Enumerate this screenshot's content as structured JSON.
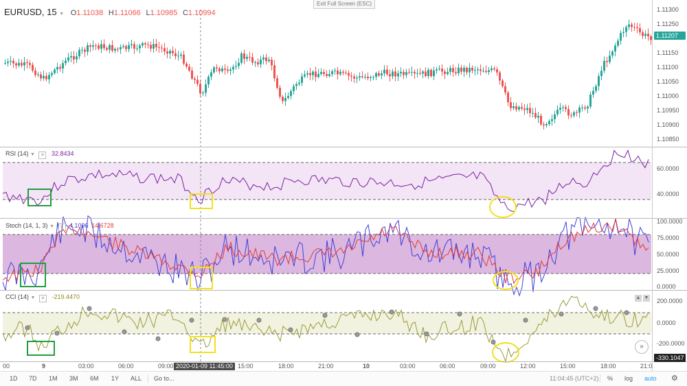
{
  "window": {
    "exit_fullscreen": "Exit Full Screen (ESC)"
  },
  "symbol": {
    "name": "EURUSD, 15",
    "o_label": "O",
    "o_value": "1.11038",
    "h_label": "H",
    "h_value": "1.11066",
    "l_label": "L",
    "l_value": "1.10985",
    "c_label": "C",
    "c_value": "1.10994"
  },
  "price_axis": {
    "labels": [
      "1.11300",
      "1.11250",
      "1.11200",
      "1.11150",
      "1.11100",
      "1.11050",
      "1.11000",
      "1.10950",
      "1.10900",
      "1.10850"
    ],
    "current": "1.11207",
    "current_color": "#26a69a"
  },
  "rsi": {
    "legend": "RSI (14)",
    "value": "32.8434",
    "labels": [
      "60.0000",
      "40.0000"
    ],
    "color": "#7b1fa2"
  },
  "stoch": {
    "legend": "Stoch (14, 1, 3)",
    "k_value": "4.1096",
    "d_value": "14.6728",
    "labels": [
      "100.0000",
      "75.0000",
      "50.0000",
      "25.0000",
      "0.0000"
    ],
    "k_color": "#3f3fd8",
    "d_color": "#e53935"
  },
  "cci": {
    "legend": "CCI (14)",
    "value": "-219.4470",
    "labels": [
      "200.0000",
      "0.0000",
      "-200.0000"
    ],
    "current": "-330.1047",
    "color": "#9a9a3a"
  },
  "time_axis": {
    "labels": [
      "00",
      "9",
      "03:00",
      "06:00",
      "09:00",
      "15:00",
      "18:00",
      "21:00",
      "10",
      "03:00",
      "06:00",
      "09:00",
      "12:00",
      "15:00",
      "18:00",
      "21:0"
    ],
    "cursor": "2020-01-09 11:45:00"
  },
  "bottom_bar": {
    "ranges": [
      "1D",
      "7D",
      "1M",
      "3M",
      "6M",
      "1Y",
      "ALL"
    ],
    "goto": "Go to...",
    "clock": "11:04:45 (UTC+2)",
    "percent": "%",
    "log": "log",
    "auto": "auto"
  },
  "colors": {
    "up": "#26a69a",
    "down": "#ef5350",
    "highlight_green": "#1e9e3c",
    "highlight_yellow": "#f2e01a"
  }
}
